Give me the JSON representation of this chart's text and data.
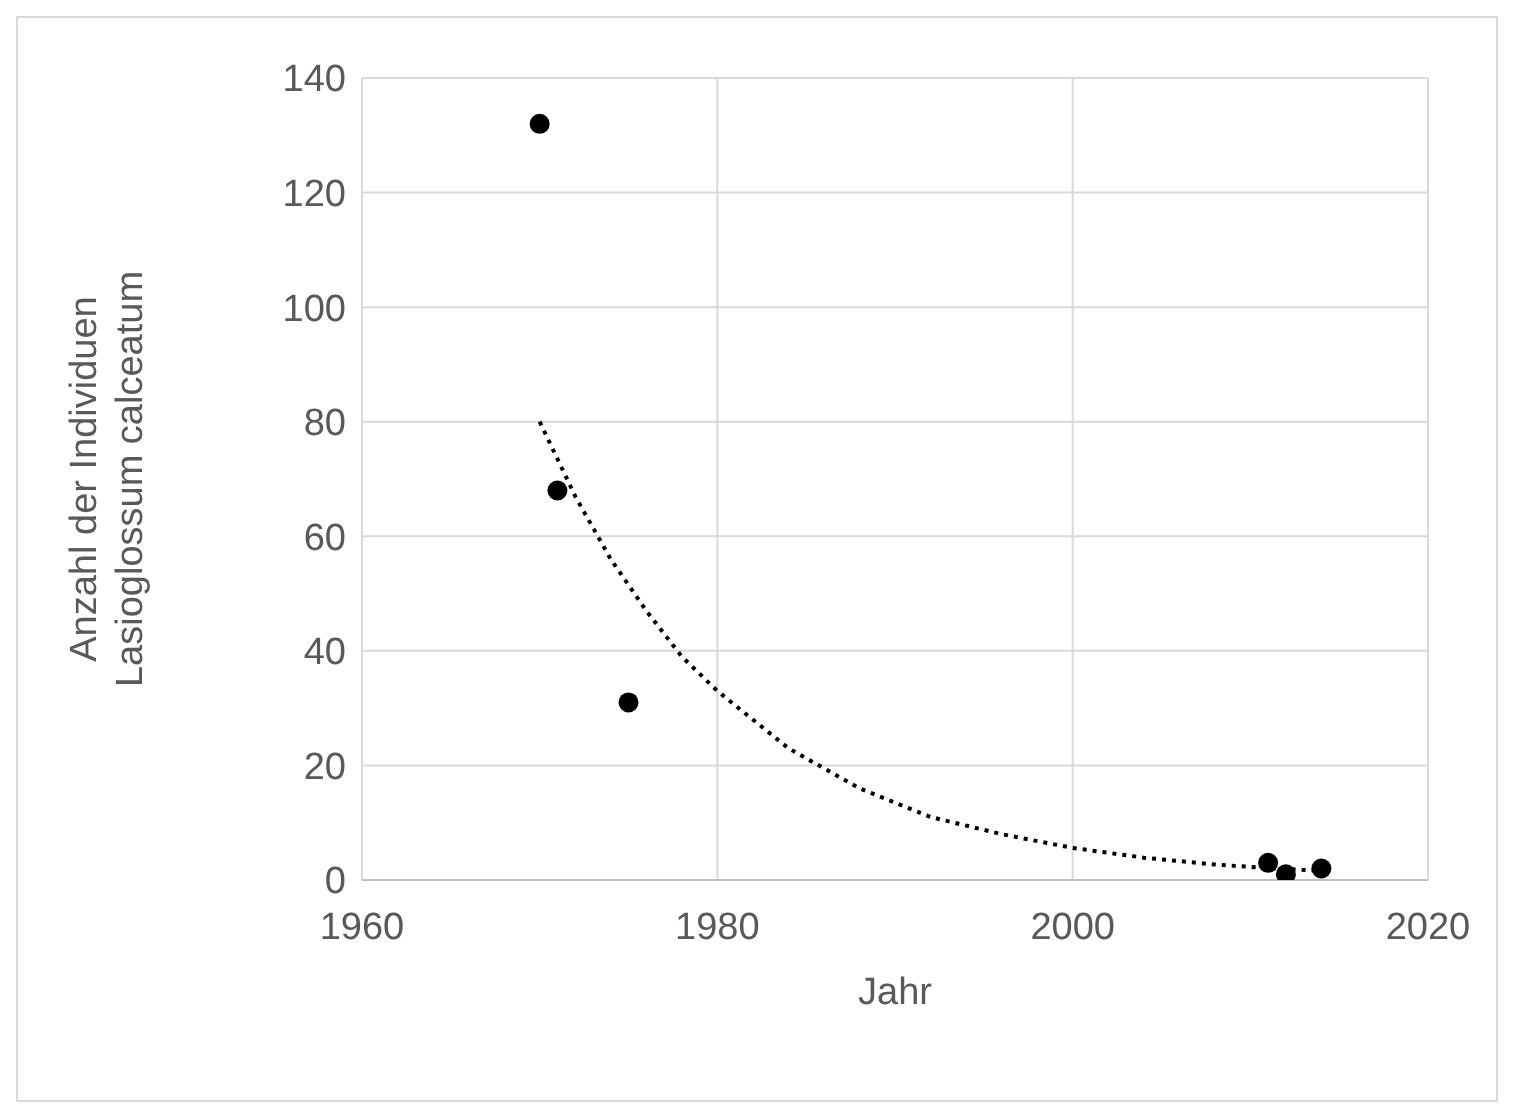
{
  "chart_data": {
    "type": "scatter",
    "xlabel": "Jahr",
    "ylabel": "Anzahl der Individuen\nLasioglossum calceatum",
    "xlim": [
      1960,
      2020
    ],
    "xticks": [
      1960,
      1980,
      2000,
      2020
    ],
    "ylim": [
      0,
      140
    ],
    "yticks": [
      0,
      20,
      40,
      60,
      80,
      100,
      120,
      140
    ],
    "grid": true,
    "marker": "circle",
    "series": [
      {
        "color": "#000000",
        "x": [
          1970,
          1971,
          1975,
          2011,
          2012,
          2014
        ],
        "values": [
          132,
          68,
          31,
          3,
          1,
          2
        ]
      },
      {
        "type": "line",
        "color": "#000000",
        "line_style": "dotted",
        "marker": "none",
        "x": [
          1970,
          1972,
          1974,
          1976,
          1978,
          1980,
          1984,
          1988,
          1992,
          1996,
          2000,
          2004,
          2008,
          2012,
          2014
        ],
        "values": [
          80,
          67,
          56,
          47,
          39,
          33,
          23,
          16,
          11,
          8,
          5.6,
          3.9,
          2.7,
          1.9,
          1.6
        ]
      }
    ]
  }
}
